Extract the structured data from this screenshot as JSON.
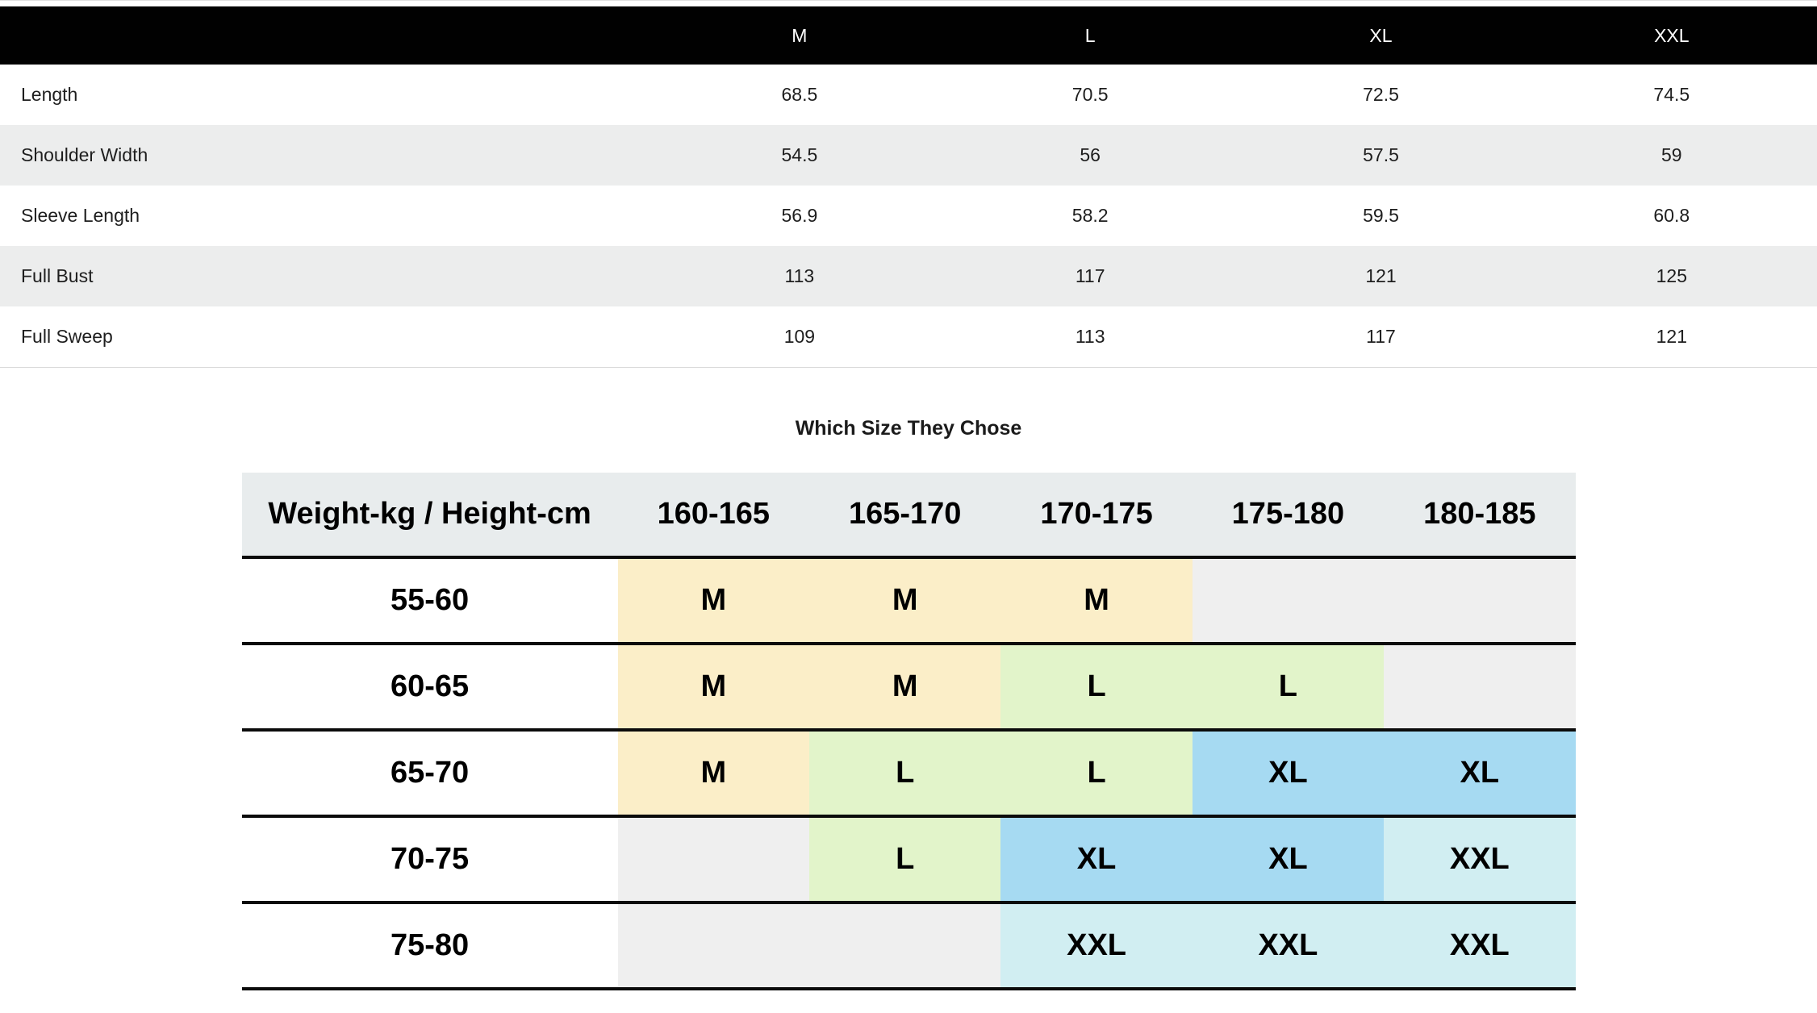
{
  "spec_table": {
    "header_columns": [
      "M",
      "L",
      "XL",
      "XXL"
    ],
    "rows": [
      {
        "label": "Length",
        "values": [
          "68.5",
          "70.5",
          "72.5",
          "74.5"
        ]
      },
      {
        "label": "Shoulder Width",
        "values": [
          "54.5",
          "56",
          "57.5",
          "59"
        ]
      },
      {
        "label": "Sleeve Length",
        "values": [
          "56.9",
          "58.2",
          "59.5",
          "60.8"
        ]
      },
      {
        "label": "Full Bust",
        "values": [
          "113",
          "117",
          "121",
          "125"
        ]
      },
      {
        "label": "Full Sweep",
        "values": [
          "109",
          "113",
          "117",
          "121"
        ]
      }
    ]
  },
  "size_chooser": {
    "title": "Which Size They Chose",
    "corner_header": "Weight-kg / Height-cm",
    "height_columns": [
      "160-165",
      "165-170",
      "170-175",
      "175-180",
      "180-185"
    ],
    "rows": [
      {
        "label": "55-60",
        "cells": [
          "M",
          "M",
          "M",
          "",
          ""
        ]
      },
      {
        "label": "60-65",
        "cells": [
          "M",
          "M",
          "L",
          "L",
          ""
        ]
      },
      {
        "label": "65-70",
        "cells": [
          "M",
          "L",
          "L",
          "XL",
          "XL"
        ]
      },
      {
        "label": "70-75",
        "cells": [
          "",
          "L",
          "XL",
          "XL",
          "XXL"
        ]
      },
      {
        "label": "75-80",
        "cells": [
          "",
          "",
          "XXL",
          "XXL",
          "XXL"
        ]
      }
    ]
  },
  "colors": {
    "M": "#FBEEC8",
    "L": "#E2F4CA",
    "XL": "#A6DAF2",
    "XXL": "#D1EEF2",
    "empty": "#EFEFEF",
    "chooser_header_bg": "#E8ECED",
    "spec_header_bg": "#010101",
    "spec_stripe_bg": "#ECEDED"
  }
}
